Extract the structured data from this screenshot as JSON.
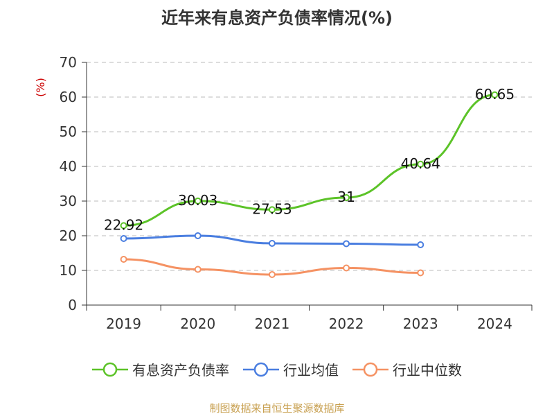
{
  "title": "近年来有息资产负债率情况(%)",
  "footer": "制图数据来自恒生聚源数据库",
  "chart_data": {
    "type": "line",
    "title": "近年来有息资产负债率情况(%)",
    "ylabel": "(%)",
    "xlabel": "",
    "categories": [
      "2019",
      "2020",
      "2021",
      "2022",
      "2023",
      "2024"
    ],
    "ylim": [
      0,
      70
    ],
    "yticks": [
      0,
      10,
      20,
      30,
      40,
      50,
      60,
      70
    ],
    "grid": true,
    "legend_position": "bottom",
    "series": [
      {
        "name": "有息资产负债率",
        "color": "#5cc328",
        "values": [
          22.92,
          30.03,
          27.53,
          31,
          40.64,
          60.65
        ],
        "labels": [
          "22.92",
          "30.03",
          "27.53",
          "31",
          "40.64",
          "60.65"
        ]
      },
      {
        "name": "行业均值",
        "color": "#4a7ee0",
        "values": [
          19.2,
          20.0,
          17.8,
          17.7,
          17.4,
          null
        ]
      },
      {
        "name": "行业中位数",
        "color": "#f59263",
        "values": [
          13.2,
          10.3,
          8.8,
          10.7,
          9.3,
          null
        ]
      }
    ]
  }
}
